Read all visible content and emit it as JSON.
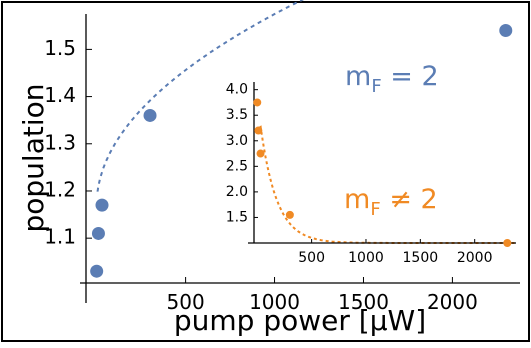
{
  "chart_data": [
    {
      "type": "scatter",
      "title": "",
      "xlabel": "pump power [μW]",
      "ylabel": "population",
      "xlim": [
        -60,
        2380
      ],
      "ylim": [
        1.005,
        1.575
      ],
      "xticks": [
        500,
        1000,
        1500,
        2000
      ],
      "yticks": [
        1.1,
        1.2,
        1.3,
        1.4,
        1.5
      ],
      "xtick_labels": [
        "500",
        "1000",
        "1500",
        "2000"
      ],
      "ytick_labels": [
        "1.1",
        "1.2",
        "1.3",
        "1.4",
        "1.5"
      ],
      "grid": false,
      "series": [
        {
          "name": "m_F = 2",
          "color": "#5b7db4",
          "marker": "circle",
          "points": [
            {
              "x": 0,
              "y": 1.03
            },
            {
              "x": 10,
              "y": 1.11
            },
            {
              "x": 30,
              "y": 1.17
            },
            {
              "x": 300,
              "y": 1.36
            },
            {
              "x": 2300,
              "y": 1.54
            }
          ],
          "fit": {
            "style": "dashed",
            "form": "1.17 + 0.0128*sqrt(x)"
          }
        }
      ],
      "annotations": [
        {
          "text_main": "m",
          "text_sub": "F",
          "text_rest": " = 2",
          "color": "#5b7db4",
          "position": "upper-right"
        }
      ]
    },
    {
      "type": "scatter",
      "title": "",
      "xlabel": "",
      "ylabel": "",
      "xlim": [
        -30,
        2380
      ],
      "ylim": [
        1.0,
        4.15
      ],
      "xticks": [
        500,
        1000,
        1500,
        2000
      ],
      "yticks": [
        1.5,
        2.0,
        2.5,
        3.0,
        3.5,
        4.0
      ],
      "xtick_labels": [
        "500",
        "1000",
        "1500",
        "2000"
      ],
      "ytick_labels": [
        "1.5",
        "2.0",
        "2.5",
        "3.0",
        "3.5",
        "4.0"
      ],
      "grid": false,
      "series": [
        {
          "name": "m_F ≠ 2",
          "color": "#f08a24",
          "marker": "circle",
          "points": [
            {
              "x": 0,
              "y": 3.75
            },
            {
              "x": 10,
              "y": 3.2
            },
            {
              "x": 30,
              "y": 2.75
            },
            {
              "x": 300,
              "y": 1.55
            },
            {
              "x": 2300,
              "y": 1.0
            }
          ],
          "fit": {
            "style": "dashed",
            "form": "1.0 + 2.8*exp(-x/150)"
          }
        }
      ],
      "annotations": [
        {
          "text_main": "m",
          "text_sub": "F",
          "text_rest": " ≠ 2",
          "color": "#f08a24",
          "position": "lower-right"
        }
      ]
    }
  ]
}
